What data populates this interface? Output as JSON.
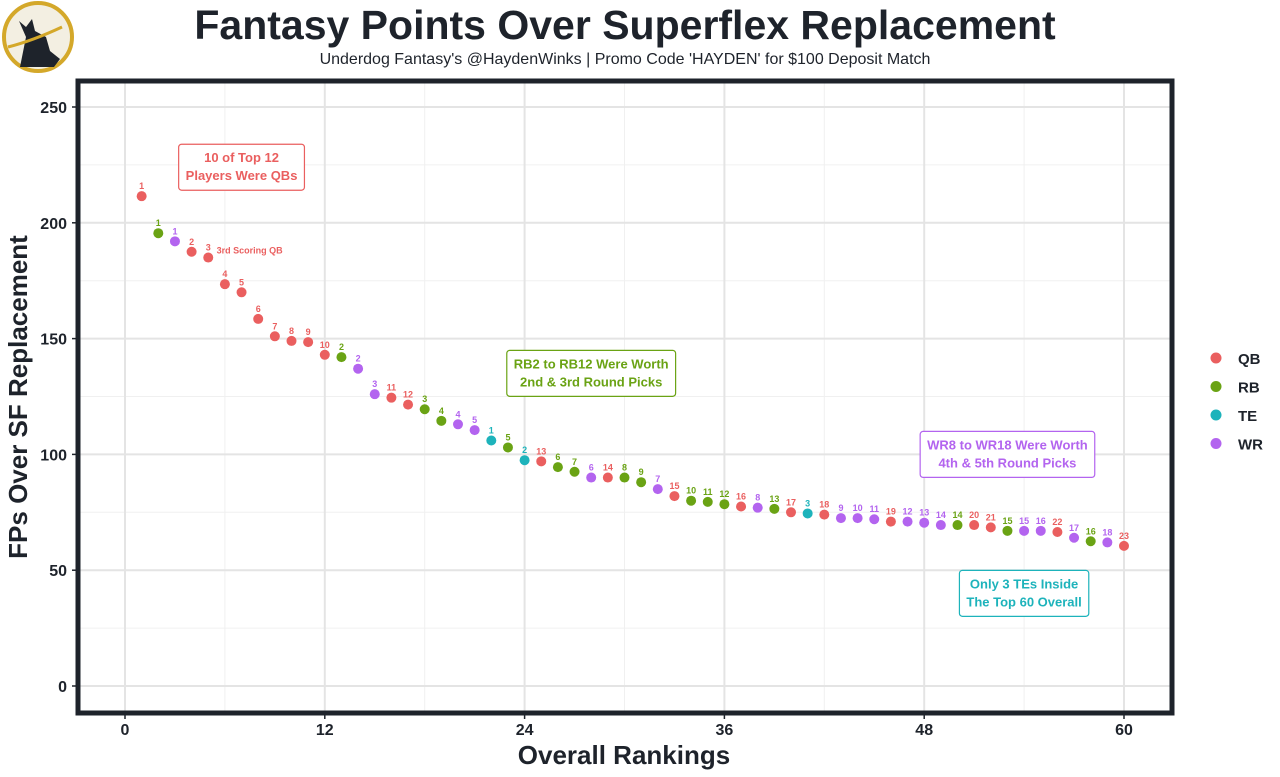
{
  "header": {
    "title": "Fantasy Points Over Superflex Replacement",
    "subtitle": "Underdog Fantasy's @HaydenWinks | Promo Code 'HAYDEN' for $100 Deposit Match",
    "logo_icon": "dog-silhouette-logo-icon"
  },
  "colors": {
    "QB": "#ea5f5f",
    "RB": "#6aa314",
    "TE": "#1db3bb",
    "WR": "#b364ef",
    "frame": "#1e232b",
    "grid": "#e4e4e4"
  },
  "chart_data": {
    "type": "scatter",
    "title": "Fantasy Points Over Superflex Replacement",
    "xlabel": "Overall Rankings",
    "ylabel": "FPs Over SF Replacement",
    "xlim": [
      -3,
      63
    ],
    "ylim": [
      -12,
      262
    ],
    "xticks": [
      0,
      12,
      24,
      36,
      48,
      60
    ],
    "yticks": [
      0,
      50,
      100,
      150,
      200,
      250
    ],
    "grid": true,
    "legend": {
      "position": "right",
      "entries": [
        "QB",
        "RB",
        "TE",
        "WR"
      ]
    },
    "points": [
      {
        "x": 1,
        "y": 211.5,
        "pos": "QB",
        "label": "1"
      },
      {
        "x": 2,
        "y": 195.5,
        "pos": "RB",
        "label": "1"
      },
      {
        "x": 3,
        "y": 192,
        "pos": "WR",
        "label": "1"
      },
      {
        "x": 4,
        "y": 187.5,
        "pos": "QB",
        "label": "2"
      },
      {
        "x": 5,
        "y": 185,
        "pos": "QB",
        "label": "3"
      },
      {
        "x": 6,
        "y": 173.5,
        "pos": "QB",
        "label": "4"
      },
      {
        "x": 7,
        "y": 170,
        "pos": "QB",
        "label": "5"
      },
      {
        "x": 8,
        "y": 158.5,
        "pos": "QB",
        "label": "6"
      },
      {
        "x": 9,
        "y": 151,
        "pos": "QB",
        "label": "7"
      },
      {
        "x": 10,
        "y": 149,
        "pos": "QB",
        "label": "8"
      },
      {
        "x": 11,
        "y": 148.5,
        "pos": "QB",
        "label": "9"
      },
      {
        "x": 12,
        "y": 143,
        "pos": "QB",
        "label": "10"
      },
      {
        "x": 13,
        "y": 142,
        "pos": "RB",
        "label": "2"
      },
      {
        "x": 14,
        "y": 137,
        "pos": "WR",
        "label": "2"
      },
      {
        "x": 15,
        "y": 126,
        "pos": "WR",
        "label": "3"
      },
      {
        "x": 16,
        "y": 124.5,
        "pos": "QB",
        "label": "11"
      },
      {
        "x": 17,
        "y": 121.5,
        "pos": "QB",
        "label": "12"
      },
      {
        "x": 18,
        "y": 119.5,
        "pos": "RB",
        "label": "3"
      },
      {
        "x": 19,
        "y": 114.5,
        "pos": "RB",
        "label": "4"
      },
      {
        "x": 20,
        "y": 113,
        "pos": "WR",
        "label": "4"
      },
      {
        "x": 21,
        "y": 110.5,
        "pos": "WR",
        "label": "5"
      },
      {
        "x": 22,
        "y": 106,
        "pos": "TE",
        "label": "1"
      },
      {
        "x": 23,
        "y": 103,
        "pos": "RB",
        "label": "5"
      },
      {
        "x": 24,
        "y": 97.5,
        "pos": "TE",
        "label": "2"
      },
      {
        "x": 25,
        "y": 97,
        "pos": "QB",
        "label": "13"
      },
      {
        "x": 26,
        "y": 94.5,
        "pos": "RB",
        "label": "6"
      },
      {
        "x": 27,
        "y": 92.5,
        "pos": "RB",
        "label": "7"
      },
      {
        "x": 28,
        "y": 90,
        "pos": "WR",
        "label": "6"
      },
      {
        "x": 29,
        "y": 90,
        "pos": "QB",
        "label": "14"
      },
      {
        "x": 30,
        "y": 90,
        "pos": "RB",
        "label": "8"
      },
      {
        "x": 31,
        "y": 88,
        "pos": "RB",
        "label": "9"
      },
      {
        "x": 32,
        "y": 85,
        "pos": "WR",
        "label": "7"
      },
      {
        "x": 33,
        "y": 82,
        "pos": "QB",
        "label": "15"
      },
      {
        "x": 34,
        "y": 80,
        "pos": "RB",
        "label": "10"
      },
      {
        "x": 35,
        "y": 79.5,
        "pos": "RB",
        "label": "11"
      },
      {
        "x": 36,
        "y": 78.5,
        "pos": "RB",
        "label": "12"
      },
      {
        "x": 37,
        "y": 77.5,
        "pos": "QB",
        "label": "16"
      },
      {
        "x": 38,
        "y": 77,
        "pos": "WR",
        "label": "8"
      },
      {
        "x": 39,
        "y": 76.5,
        "pos": "RB",
        "label": "13"
      },
      {
        "x": 40,
        "y": 75,
        "pos": "QB",
        "label": "17"
      },
      {
        "x": 41,
        "y": 74.5,
        "pos": "TE",
        "label": "3"
      },
      {
        "x": 42,
        "y": 74,
        "pos": "QB",
        "label": "18"
      },
      {
        "x": 43,
        "y": 72.5,
        "pos": "WR",
        "label": "9"
      },
      {
        "x": 44,
        "y": 72.5,
        "pos": "WR",
        "label": "10"
      },
      {
        "x": 45,
        "y": 72,
        "pos": "WR",
        "label": "11"
      },
      {
        "x": 46,
        "y": 71,
        "pos": "QB",
        "label": "19"
      },
      {
        "x": 47,
        "y": 71,
        "pos": "WR",
        "label": "12"
      },
      {
        "x": 48,
        "y": 70.5,
        "pos": "WR",
        "label": "13"
      },
      {
        "x": 49,
        "y": 69.5,
        "pos": "WR",
        "label": "14"
      },
      {
        "x": 50,
        "y": 69.5,
        "pos": "RB",
        "label": "14"
      },
      {
        "x": 51,
        "y": 69.5,
        "pos": "QB",
        "label": "20"
      },
      {
        "x": 52,
        "y": 68.5,
        "pos": "QB",
        "label": "21"
      },
      {
        "x": 53,
        "y": 67,
        "pos": "RB",
        "label": "15"
      },
      {
        "x": 54,
        "y": 67,
        "pos": "WR",
        "label": "15"
      },
      {
        "x": 55,
        "y": 67,
        "pos": "WR",
        "label": "16"
      },
      {
        "x": 56,
        "y": 66.5,
        "pos": "QB",
        "label": "22"
      },
      {
        "x": 57,
        "y": 64,
        "pos": "WR",
        "label": "17"
      },
      {
        "x": 58,
        "y": 62.5,
        "pos": "RB",
        "label": "16"
      },
      {
        "x": 59,
        "y": 62,
        "pos": "WR",
        "label": "18"
      },
      {
        "x": 60,
        "y": 60.5,
        "pos": "QB",
        "label": "23"
      }
    ],
    "annotations": [
      {
        "text": "3rd Scoring QB",
        "x": 5.5,
        "y": 188,
        "pos": "QB",
        "boxed": false
      },
      {
        "lines": [
          "10 of Top 12",
          "Players Were QBs"
        ],
        "x": 7,
        "y": 224,
        "pos": "QB",
        "boxed": true
      },
      {
        "lines": [
          "RB2 to RB12 Were Worth",
          "2nd & 3rd Round Picks"
        ],
        "x": 28,
        "y": 135,
        "pos": "RB",
        "boxed": true
      },
      {
        "lines": [
          "WR8 to WR18 Were Worth",
          "4th & 5th Round Picks"
        ],
        "x": 53,
        "y": 100,
        "pos": "WR",
        "boxed": true
      },
      {
        "lines": [
          "Only 3 TEs Inside",
          "The Top 60 Overall"
        ],
        "x": 54,
        "y": 40,
        "pos": "TE",
        "boxed": true
      }
    ]
  }
}
